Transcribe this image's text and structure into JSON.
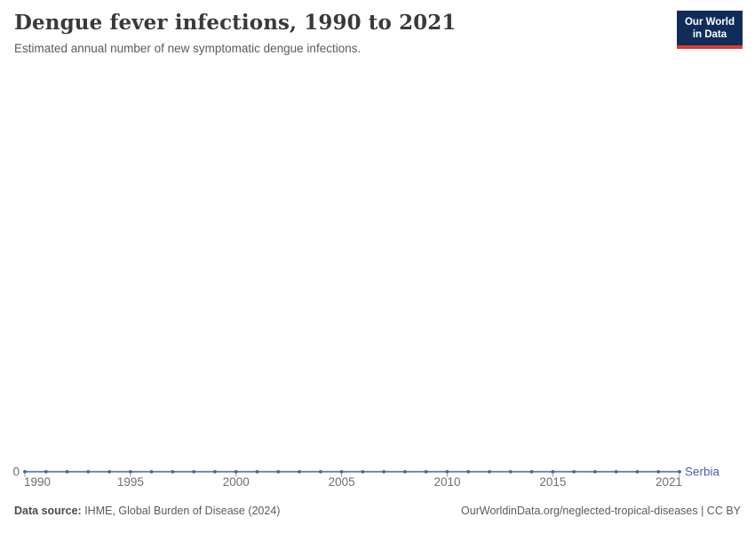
{
  "header": {
    "title": "Dengue fever infections, 1990 to 2021",
    "subtitle": "Estimated annual number of new symptomatic dengue infections.",
    "logo": {
      "line1": "Our World",
      "line2": "in Data",
      "bg_color": "#102d59",
      "accent_color": "#dc3b30"
    }
  },
  "chart_data": {
    "type": "line",
    "title": "Dengue fever infections, 1990 to 2021",
    "subtitle": "Estimated annual number of new symptomatic dengue infections.",
    "xlabel": "",
    "ylabel": "",
    "x": [
      1990,
      1991,
      1992,
      1993,
      1994,
      1995,
      1996,
      1997,
      1998,
      1999,
      2000,
      2001,
      2002,
      2003,
      2004,
      2005,
      2006,
      2007,
      2008,
      2009,
      2010,
      2011,
      2012,
      2013,
      2014,
      2015,
      2016,
      2017,
      2018,
      2019,
      2020,
      2021
    ],
    "series": [
      {
        "name": "Serbia",
        "color": "#4165ae",
        "values": [
          0,
          0,
          0,
          0,
          0,
          0,
          0,
          0,
          0,
          0,
          0,
          0,
          0,
          0,
          0,
          0,
          0,
          0,
          0,
          0,
          0,
          0,
          0,
          0,
          0,
          0,
          0,
          0,
          0,
          0,
          0,
          0
        ]
      }
    ],
    "x_tick_labels": [
      "1990",
      "1995",
      "2000",
      "2005",
      "2010",
      "2015",
      "2021"
    ],
    "y_tick_labels": [
      "0"
    ],
    "xlim": [
      1990,
      2021
    ],
    "ylim": [
      0,
      1
    ],
    "grid": false,
    "legend_position": "end-of-line",
    "marker": "circle",
    "axis_label_color": "#6e6e6e",
    "tick_color": "#a0a0a0"
  },
  "footer": {
    "source_label": "Data source:",
    "source_text": " IHME, Global Burden of Disease (2024)",
    "credit": "OurWorldinData.org/neglected-tropical-diseases | CC BY"
  }
}
